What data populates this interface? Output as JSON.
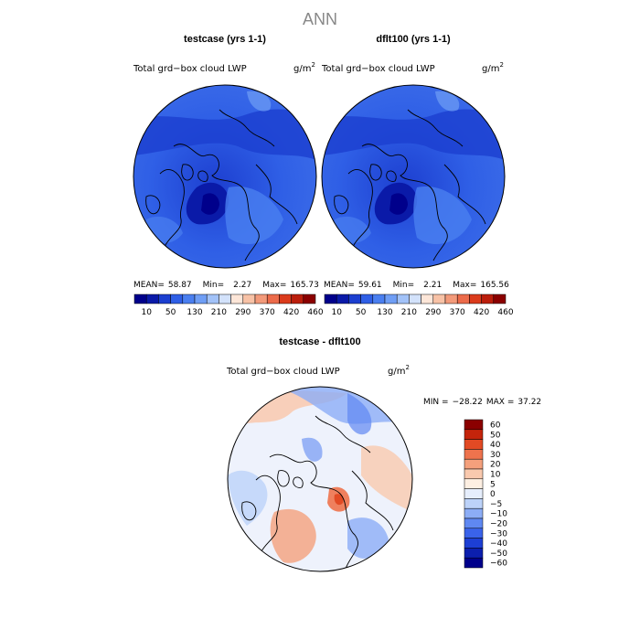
{
  "page_title": "ANN",
  "colors": {
    "abs_scale": [
      "#00008b",
      "#0a1aa8",
      "#1c3fd0",
      "#2f5fe6",
      "#4a7ff0",
      "#6f9ef5",
      "#a2c2f8",
      "#d3e2fb",
      "#fde6d8",
      "#f8c2a6",
      "#f39a7a",
      "#ec6b4a",
      "#db3b1c",
      "#bb1e0c",
      "#8b0000"
    ],
    "diff_scale": [
      "#00008b",
      "#0c1fae",
      "#1d3fd4",
      "#3a63ea",
      "#5f88f2",
      "#8cadf6",
      "#bcd2f9",
      "#e6eefc",
      "#fdefe2",
      "#f9c9ae",
      "#f4a07c",
      "#ee734d",
      "#e24a24",
      "#c4240b",
      "#8b0000"
    ],
    "abs_field_base": "#2b55e0",
    "diff_field_base": "#e9eefc",
    "coastline": "#000000"
  },
  "chart_data": [
    {
      "type": "heatmap",
      "panel": "top-left",
      "title": "testcase (yrs 1-1)",
      "subtitle": "Total grd−box cloud LWP",
      "units_base": "g/m",
      "units_exp": "2",
      "projection": "north-polar-stereographic",
      "stats": {
        "mean_label": "MEAN=",
        "mean": "58.87",
        "min_label": "Min=",
        "min": "2.27",
        "max_label": "Max=",
        "max": "165.73"
      },
      "colorbar_ticks": [
        "10",
        "50",
        "130",
        "210",
        "290",
        "370",
        "420",
        "460"
      ],
      "contour_levels": [
        10,
        30,
        50,
        90,
        130,
        170,
        210,
        250,
        290,
        330,
        370,
        400,
        420,
        440,
        460
      ]
    },
    {
      "type": "heatmap",
      "panel": "top-right",
      "title": "dflt100 (yrs 1-1)",
      "subtitle": "Total grd−box cloud LWP",
      "units_base": "g/m",
      "units_exp": "2",
      "projection": "north-polar-stereographic",
      "stats": {
        "mean_label": "MEAN=",
        "mean": "59.61",
        "min_label": "Min=",
        "min": "2.21",
        "max_label": "Max=",
        "max": "165.56"
      },
      "colorbar_ticks": [
        "10",
        "50",
        "130",
        "210",
        "290",
        "370",
        "420",
        "460"
      ],
      "contour_levels": [
        10,
        30,
        50,
        90,
        130,
        170,
        210,
        250,
        290,
        330,
        370,
        400,
        420,
        440,
        460
      ]
    },
    {
      "type": "heatmap",
      "panel": "bottom",
      "title": "testcase - dflt100",
      "subtitle": "Total grd−box cloud LWP",
      "units_base": "g/m",
      "units_exp": "2",
      "projection": "north-polar-stereographic",
      "stats": {
        "min_label": "MIN =",
        "min": "−28.22",
        "max_label": "MAX =",
        "max": "37.22"
      },
      "colorbar_ticks": [
        "60",
        "50",
        "40",
        "30",
        "20",
        "10",
        "5",
        "0",
        "−5",
        "−10",
        "−20",
        "−30",
        "−40",
        "−50",
        "−60"
      ],
      "contour_levels": [
        -60,
        -50,
        -40,
        -30,
        -20,
        -10,
        -5,
        0,
        5,
        10,
        20,
        30,
        40,
        50,
        60
      ]
    }
  ]
}
